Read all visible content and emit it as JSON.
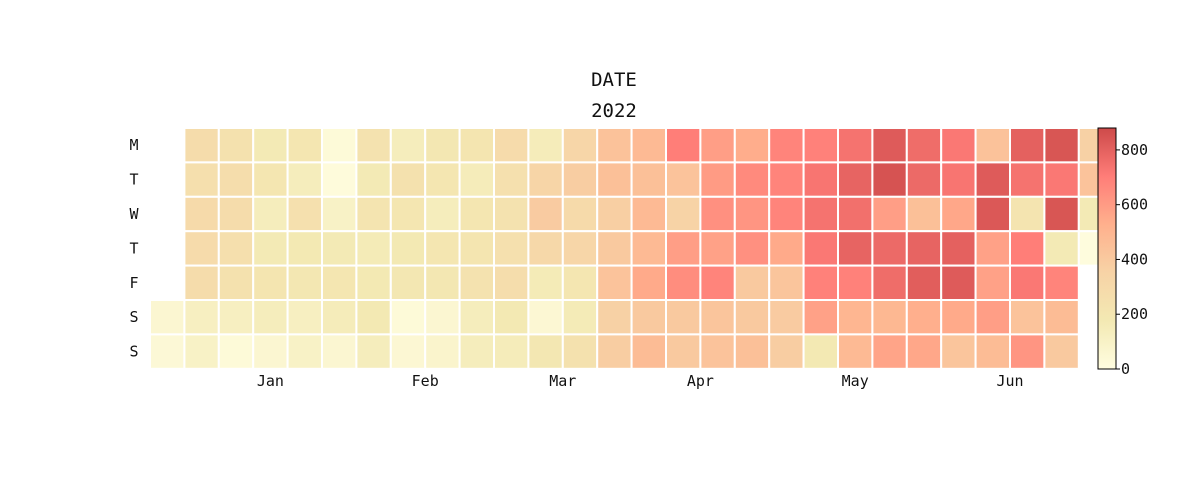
{
  "chart_data": {
    "type": "heatmap",
    "title": "DATE",
    "subtitle": "2022",
    "start_date": "2022-01-01",
    "y_labels": [
      "M",
      "T",
      "W",
      "T",
      "F",
      "S",
      "S"
    ],
    "month_labels": [
      "Jan",
      "Feb",
      "Mar",
      "Apr",
      "May",
      "Jun"
    ],
    "colorscale": [
      "#fffde0",
      "#f3e9b3",
      "#f7d3a6",
      "#ffb08d",
      "#ff7d78",
      "#cd4a4a"
    ],
    "colorbar": {
      "min": 0,
      "max": 880,
      "ticks": [
        0,
        200,
        400,
        600,
        800
      ]
    },
    "weeks": [
      [
        null,
        null,
        null,
        null,
        null,
        60,
        40
      ],
      [
        280,
        260,
        300,
        290,
        280,
        120,
        100
      ],
      [
        240,
        270,
        280,
        260,
        240,
        120,
        30
      ],
      [
        170,
        200,
        140,
        170,
        210,
        140,
        60
      ],
      [
        200,
        140,
        250,
        180,
        190,
        120,
        100
      ],
      [
        30,
        20,
        100,
        170,
        200,
        150,
        60
      ],
      [
        230,
        170,
        220,
        160,
        180,
        180,
        140
      ],
      [
        140,
        240,
        200,
        180,
        190,
        30,
        50
      ],
      [
        190,
        200,
        140,
        200,
        190,
        60,
        80
      ],
      [
        210,
        150,
        200,
        210,
        230,
        140,
        140
      ],
      [
        290,
        250,
        230,
        250,
        270,
        180,
        150
      ],
      [
        150,
        340,
        390,
        310,
        160,
        50,
        190
      ],
      [
        330,
        380,
        300,
        330,
        200,
        160,
        240
      ],
      [
        440,
        450,
        370,
        400,
        430,
        360,
        380
      ],
      [
        480,
        450,
        480,
        480,
        550,
        400,
        470
      ],
      [
        700,
        430,
        350,
        590,
        650,
        400,
        400
      ],
      [
        590,
        600,
        640,
        580,
        680,
        420,
        430
      ],
      [
        540,
        660,
        620,
        640,
        400,
        400,
        450
      ],
      [
        680,
        680,
        680,
        550,
        420,
        390,
        380
      ],
      [
        690,
        730,
        740,
        720,
        690,
        580,
        180
      ],
      [
        740,
        790,
        750,
        790,
        690,
        500,
        480
      ],
      [
        820,
        850,
        590,
        770,
        760,
        490,
        570
      ],
      [
        760,
        770,
        450,
        790,
        810,
        530,
        560
      ],
      [
        720,
        730,
        560,
        800,
        820,
        550,
        420
      ],
      [
        440,
        820,
        830,
        580,
        580,
        590,
        470
      ],
      [
        800,
        740,
        220,
        700,
        720,
        430,
        620
      ],
      [
        840,
        720,
        840,
        170,
        680,
        470,
        400
      ],
      [
        360,
        430,
        170,
        10,
        null,
        null,
        null
      ]
    ]
  }
}
